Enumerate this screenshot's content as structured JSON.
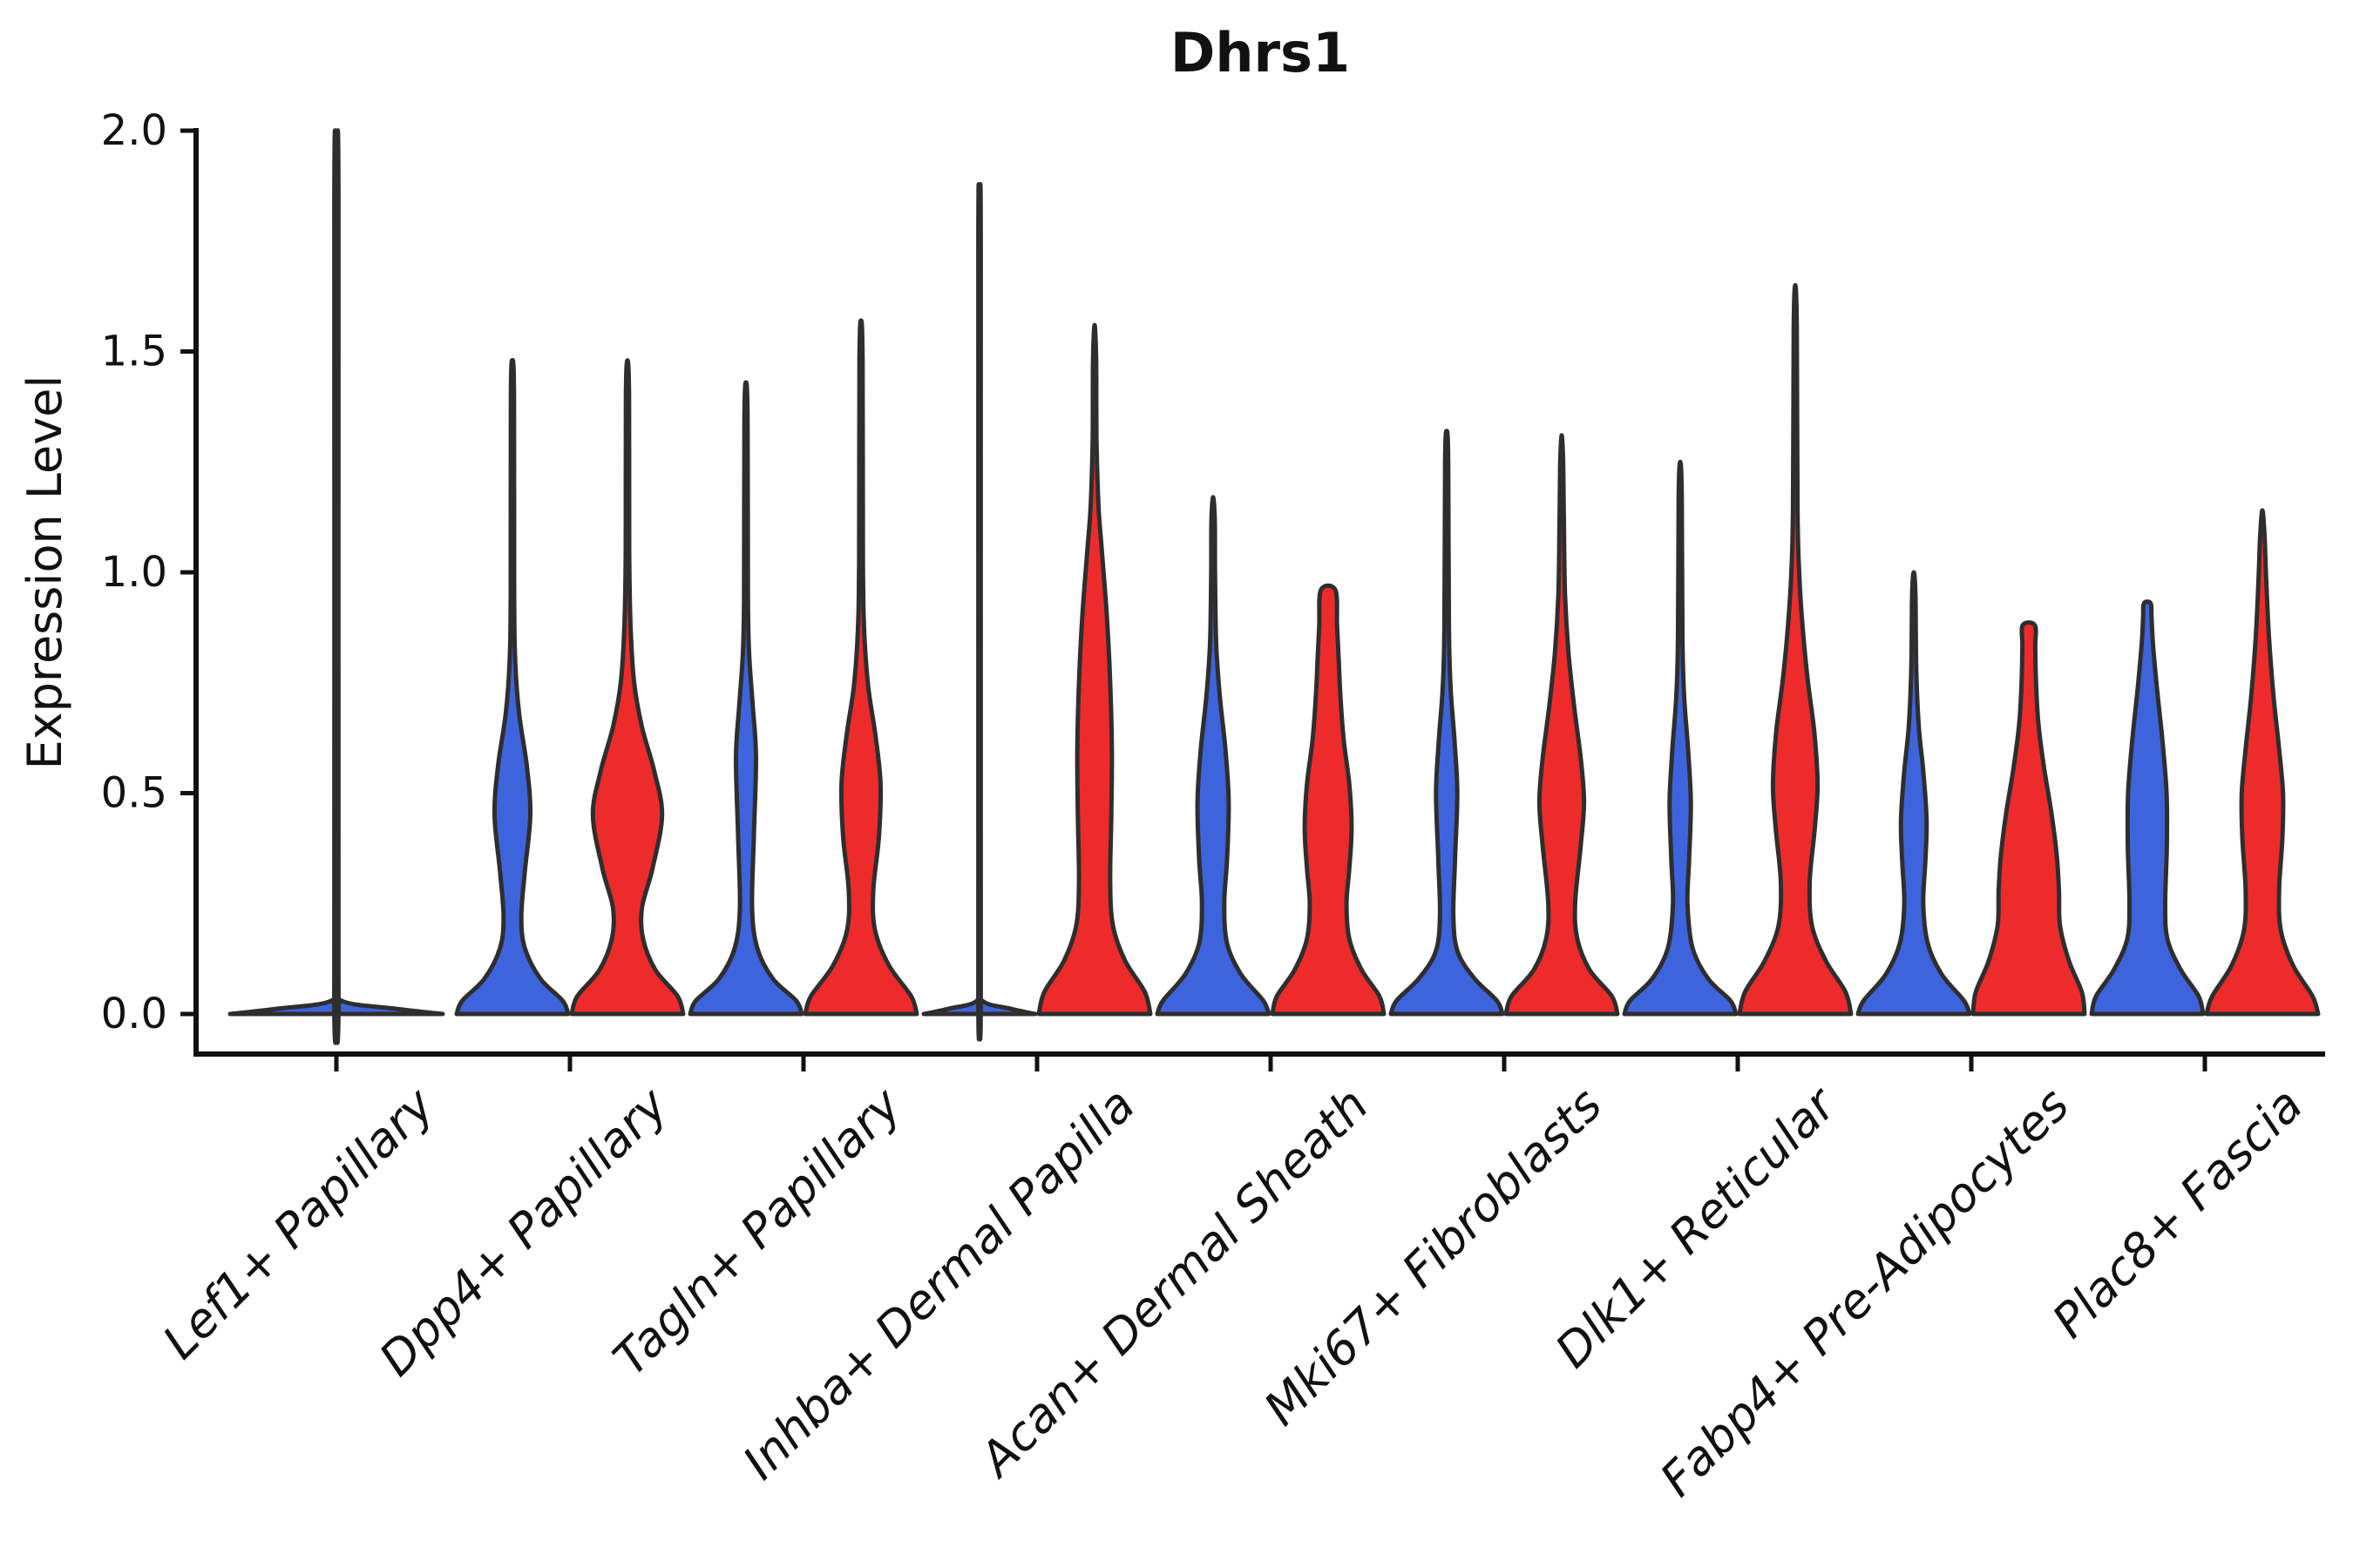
{
  "chart_data": {
    "type": "violin",
    "title": "Dhrs1",
    "xlabel": "",
    "ylabel": "Expression Level",
    "ylim": [
      0,
      2.0
    ],
    "ytick_labels": [
      "0.0",
      "0.5",
      "1.0",
      "1.5",
      "2.0"
    ],
    "ytick_values": [
      0,
      0.5,
      1.0,
      1.5,
      2.0
    ],
    "grid": false,
    "legend": "none",
    "categories": [
      "Lef1+ Papillary",
      "Dpp4+ Papillary",
      "Tagln+ Papillary",
      "Inhba+ Dermal Papilla",
      "Acan+ Dermal Sheath",
      "Mki67+ Fibroblasts",
      "Dlk1+ Reticular",
      "Fabp4+ Pre-Adipocytes",
      "Plac8+ Fascia"
    ],
    "series": [
      {
        "name": "blue",
        "color": "#3E64DD"
      },
      {
        "name": "red",
        "color": "#EE2B2B"
      }
    ],
    "style": {
      "edge_color": "#2E2E2E",
      "axis_color": "#111111",
      "background": "#FFFFFF"
    },
    "violins": [
      {
        "group": 0,
        "category": "Lef1+ Papillary",
        "series": "blue",
        "span": "full",
        "max": 1.92,
        "profile": [
          [
            0,
            1.0
          ],
          [
            0.012,
            0.55
          ],
          [
            0.03,
            0.05
          ],
          [
            0.08,
            0.02
          ],
          [
            1.84,
            0.02
          ],
          [
            1.92,
            0
          ]
        ]
      },
      {
        "group": 1,
        "category": "Dpp4+ Papillary",
        "series": "blue",
        "span": "half",
        "max": 1.48,
        "profile": [
          [
            0,
            1.0
          ],
          [
            0.03,
            0.9
          ],
          [
            0.08,
            0.5
          ],
          [
            0.15,
            0.22
          ],
          [
            0.22,
            0.16
          ],
          [
            0.32,
            0.22
          ],
          [
            0.45,
            0.32
          ],
          [
            0.56,
            0.26
          ],
          [
            0.68,
            0.12
          ],
          [
            0.8,
            0.05
          ],
          [
            0.95,
            0.032
          ],
          [
            1.4,
            0.028
          ],
          [
            1.48,
            0
          ]
        ]
      },
      {
        "group": 1,
        "category": "Dpp4+ Papillary",
        "series": "red",
        "span": "half",
        "max": 1.48,
        "profile": [
          [
            0,
            1.0
          ],
          [
            0.04,
            0.9
          ],
          [
            0.1,
            0.5
          ],
          [
            0.17,
            0.28
          ],
          [
            0.24,
            0.26
          ],
          [
            0.33,
            0.45
          ],
          [
            0.45,
            0.62
          ],
          [
            0.55,
            0.48
          ],
          [
            0.65,
            0.26
          ],
          [
            0.75,
            0.12
          ],
          [
            0.88,
            0.055
          ],
          [
            1.05,
            0.032
          ],
          [
            1.4,
            0.028
          ],
          [
            1.48,
            0
          ]
        ]
      },
      {
        "group": 2,
        "category": "Tagln+ Papillary",
        "series": "blue",
        "span": "half",
        "max": 1.43,
        "profile": [
          [
            0,
            1.0
          ],
          [
            0.03,
            0.9
          ],
          [
            0.08,
            0.48
          ],
          [
            0.15,
            0.2
          ],
          [
            0.24,
            0.11
          ],
          [
            0.4,
            0.14
          ],
          [
            0.58,
            0.18
          ],
          [
            0.7,
            0.12
          ],
          [
            0.82,
            0.055
          ],
          [
            0.95,
            0.035
          ],
          [
            1.35,
            0.028
          ],
          [
            1.43,
            0
          ]
        ]
      },
      {
        "group": 2,
        "category": "Tagln+ Papillary",
        "series": "red",
        "span": "half",
        "max": 1.57,
        "profile": [
          [
            0,
            1.0
          ],
          [
            0.04,
            0.9
          ],
          [
            0.11,
            0.5
          ],
          [
            0.19,
            0.25
          ],
          [
            0.28,
            0.22
          ],
          [
            0.4,
            0.32
          ],
          [
            0.52,
            0.35
          ],
          [
            0.63,
            0.26
          ],
          [
            0.74,
            0.13
          ],
          [
            0.86,
            0.06
          ],
          [
            1.02,
            0.035
          ],
          [
            1.48,
            0.028
          ],
          [
            1.57,
            0
          ]
        ]
      },
      {
        "group": 3,
        "category": "Inhba+ Dermal Papilla",
        "series": "blue",
        "span": "half",
        "max": 1.8,
        "profile": [
          [
            0,
            1.0
          ],
          [
            0.012,
            0.55
          ],
          [
            0.03,
            0.05
          ],
          [
            0.08,
            0.022
          ],
          [
            1.73,
            0.022
          ],
          [
            1.8,
            0
          ]
        ]
      },
      {
        "group": 3,
        "category": "Inhba+ Dermal Papilla",
        "series": "red",
        "span": "half",
        "max": 1.56,
        "profile": [
          [
            0,
            1.0
          ],
          [
            0.05,
            0.9
          ],
          [
            0.12,
            0.55
          ],
          [
            0.2,
            0.33
          ],
          [
            0.3,
            0.28
          ],
          [
            0.45,
            0.3
          ],
          [
            0.6,
            0.31
          ],
          [
            0.75,
            0.28
          ],
          [
            0.9,
            0.22
          ],
          [
            1.05,
            0.13
          ],
          [
            1.15,
            0.07
          ],
          [
            1.3,
            0.035
          ],
          [
            1.48,
            0.028
          ],
          [
            1.56,
            0
          ]
        ]
      },
      {
        "group": 4,
        "category": "Acan+ Dermal Sheath",
        "series": "blue",
        "span": "half",
        "max": 1.17,
        "profile": [
          [
            0,
            1.0
          ],
          [
            0.03,
            0.9
          ],
          [
            0.09,
            0.5
          ],
          [
            0.16,
            0.25
          ],
          [
            0.25,
            0.2
          ],
          [
            0.35,
            0.25
          ],
          [
            0.48,
            0.28
          ],
          [
            0.6,
            0.22
          ],
          [
            0.72,
            0.12
          ],
          [
            0.84,
            0.055
          ],
          [
            1.0,
            0.035
          ],
          [
            1.12,
            0.03
          ],
          [
            1.17,
            0
          ]
        ]
      },
      {
        "group": 4,
        "category": "Acan+ Dermal Sheath",
        "series": "red",
        "span": "half",
        "max": 0.96,
        "blunt": true,
        "profile": [
          [
            0,
            1.0
          ],
          [
            0.04,
            0.92
          ],
          [
            0.1,
            0.6
          ],
          [
            0.17,
            0.38
          ],
          [
            0.25,
            0.33
          ],
          [
            0.33,
            0.38
          ],
          [
            0.42,
            0.42
          ],
          [
            0.52,
            0.38
          ],
          [
            0.62,
            0.28
          ],
          [
            0.72,
            0.22
          ],
          [
            0.8,
            0.19
          ],
          [
            0.88,
            0.16
          ],
          [
            0.96,
            0.13
          ]
        ]
      },
      {
        "group": 5,
        "category": "Mki67+ Fibroblasts",
        "series": "blue",
        "span": "half",
        "max": 1.32,
        "profile": [
          [
            0,
            1.0
          ],
          [
            0.03,
            0.9
          ],
          [
            0.08,
            0.5
          ],
          [
            0.14,
            0.2
          ],
          [
            0.22,
            0.12
          ],
          [
            0.35,
            0.15
          ],
          [
            0.5,
            0.19
          ],
          [
            0.62,
            0.14
          ],
          [
            0.74,
            0.07
          ],
          [
            0.88,
            0.04
          ],
          [
            1.25,
            0.028
          ],
          [
            1.32,
            0
          ]
        ]
      },
      {
        "group": 5,
        "category": "Mki67+ Fibroblasts",
        "series": "red",
        "span": "half",
        "max": 1.31,
        "profile": [
          [
            0,
            1.0
          ],
          [
            0.04,
            0.9
          ],
          [
            0.1,
            0.5
          ],
          [
            0.17,
            0.28
          ],
          [
            0.25,
            0.24
          ],
          [
            0.38,
            0.34
          ],
          [
            0.48,
            0.4
          ],
          [
            0.58,
            0.34
          ],
          [
            0.7,
            0.22
          ],
          [
            0.82,
            0.12
          ],
          [
            0.95,
            0.06
          ],
          [
            1.1,
            0.04
          ],
          [
            1.24,
            0.028
          ],
          [
            1.31,
            0
          ]
        ]
      },
      {
        "group": 6,
        "category": "Dlk1+ Reticular",
        "series": "blue",
        "span": "half",
        "max": 1.25,
        "profile": [
          [
            0,
            1.0
          ],
          [
            0.03,
            0.9
          ],
          [
            0.08,
            0.5
          ],
          [
            0.15,
            0.22
          ],
          [
            0.25,
            0.13
          ],
          [
            0.35,
            0.16
          ],
          [
            0.48,
            0.19
          ],
          [
            0.6,
            0.14
          ],
          [
            0.72,
            0.07
          ],
          [
            0.85,
            0.04
          ],
          [
            1.17,
            0.028
          ],
          [
            1.25,
            0
          ]
        ]
      },
      {
        "group": 6,
        "category": "Dlk1+ Reticular",
        "series": "red",
        "span": "half",
        "max": 1.65,
        "profile": [
          [
            0,
            1.0
          ],
          [
            0.05,
            0.9
          ],
          [
            0.12,
            0.55
          ],
          [
            0.2,
            0.3
          ],
          [
            0.3,
            0.26
          ],
          [
            0.42,
            0.35
          ],
          [
            0.52,
            0.4
          ],
          [
            0.64,
            0.34
          ],
          [
            0.76,
            0.22
          ],
          [
            0.88,
            0.13
          ],
          [
            1.0,
            0.07
          ],
          [
            1.15,
            0.04
          ],
          [
            1.55,
            0.028
          ],
          [
            1.65,
            0
          ]
        ]
      },
      {
        "group": 7,
        "category": "Fabp4+ Pre-Adipocytes",
        "series": "blue",
        "span": "half",
        "max": 1.0,
        "profile": [
          [
            0,
            1.0
          ],
          [
            0.03,
            0.9
          ],
          [
            0.09,
            0.5
          ],
          [
            0.16,
            0.25
          ],
          [
            0.25,
            0.17
          ],
          [
            0.35,
            0.21
          ],
          [
            0.44,
            0.23
          ],
          [
            0.55,
            0.17
          ],
          [
            0.65,
            0.09
          ],
          [
            0.78,
            0.045
          ],
          [
            0.95,
            0.03
          ],
          [
            1.0,
            0
          ]
        ]
      },
      {
        "group": 7,
        "category": "Fabp4+ Pre-Adipocytes",
        "series": "red",
        "span": "half",
        "max": 0.88,
        "blunt": true,
        "profile": [
          [
            0,
            1.0
          ],
          [
            0.05,
            0.95
          ],
          [
            0.12,
            0.72
          ],
          [
            0.2,
            0.56
          ],
          [
            0.28,
            0.54
          ],
          [
            0.36,
            0.5
          ],
          [
            0.46,
            0.4
          ],
          [
            0.56,
            0.27
          ],
          [
            0.66,
            0.17
          ],
          [
            0.75,
            0.13
          ],
          [
            0.83,
            0.115
          ],
          [
            0.88,
            0.11
          ]
        ]
      },
      {
        "group": 8,
        "category": "Plac8+ Fascia",
        "series": "blue",
        "span": "half",
        "max": 0.93,
        "blunt": true,
        "profile": [
          [
            0,
            1.0
          ],
          [
            0.04,
            0.92
          ],
          [
            0.1,
            0.6
          ],
          [
            0.17,
            0.36
          ],
          [
            0.25,
            0.32
          ],
          [
            0.38,
            0.35
          ],
          [
            0.5,
            0.345
          ],
          [
            0.62,
            0.27
          ],
          [
            0.74,
            0.17
          ],
          [
            0.84,
            0.1
          ],
          [
            0.9,
            0.075
          ],
          [
            0.93,
            0.06
          ]
        ]
      },
      {
        "group": 8,
        "category": "Plac8+ Fascia",
        "series": "red",
        "span": "half",
        "max": 1.14,
        "profile": [
          [
            0,
            1.0
          ],
          [
            0.04,
            0.9
          ],
          [
            0.11,
            0.55
          ],
          [
            0.19,
            0.33
          ],
          [
            0.28,
            0.3
          ],
          [
            0.4,
            0.36
          ],
          [
            0.5,
            0.37
          ],
          [
            0.6,
            0.3
          ],
          [
            0.72,
            0.2
          ],
          [
            0.85,
            0.12
          ],
          [
            0.98,
            0.07
          ],
          [
            1.08,
            0.04
          ],
          [
            1.14,
            0
          ]
        ]
      }
    ]
  }
}
